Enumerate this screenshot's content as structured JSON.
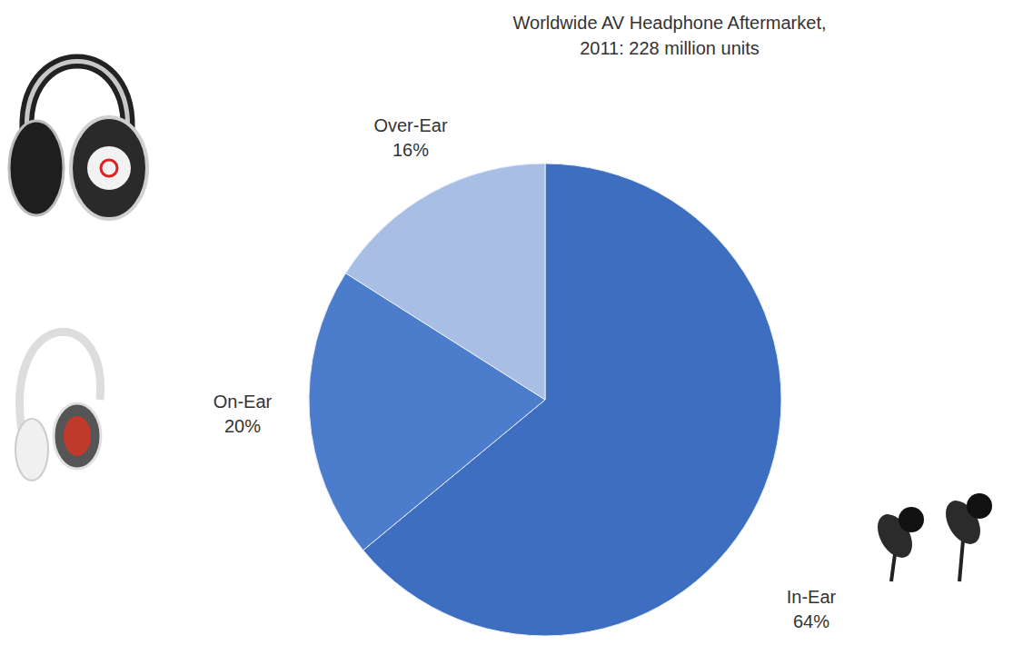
{
  "chart_data": {
    "type": "pie",
    "title": "Worldwide AV Headphone Aftermarket, 2011: 228 million units",
    "categories": [
      "In-Ear",
      "On-Ear",
      "Over-Ear"
    ],
    "values": [
      64,
      20,
      16
    ],
    "value_labels": [
      "64%",
      "20%",
      "16%"
    ],
    "colors": [
      "#3d6ebf",
      "#4b7dcc",
      "#a9bee5"
    ],
    "data_labels": true
  }
}
